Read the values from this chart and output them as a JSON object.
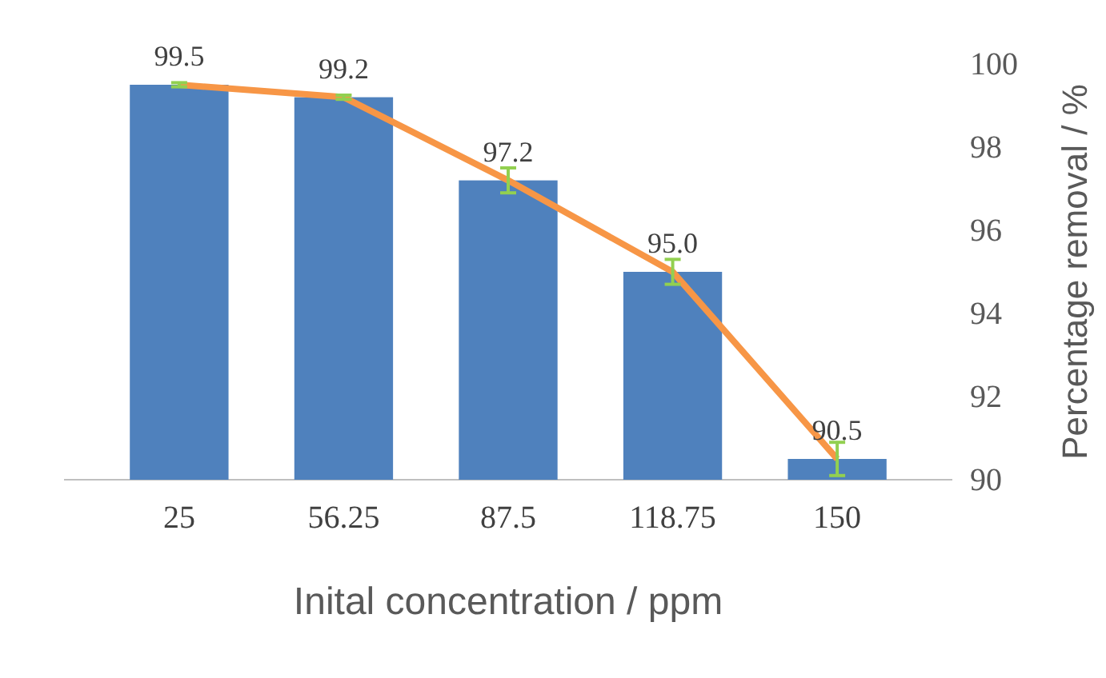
{
  "chart_data": {
    "type": "bar",
    "xlabel": "Inital concentration / ppm",
    "y2label": "Percentage removal / %",
    "categories": [
      "25",
      "56.25",
      "87.5",
      "118.75",
      "150"
    ],
    "series": [
      {
        "axis": "y2",
        "color": "#4f81bd",
        "values": [
          99.5,
          99.2,
          97.2,
          95.0,
          90.5
        ],
        "value_labels": [
          "99.5",
          "99.2",
          "97.2",
          "95.0",
          "90.5"
        ]
      },
      {
        "type": "line",
        "axis": "y2",
        "color": "#f79646",
        "values": [
          99.5,
          99.2,
          97.2,
          95.0,
          90.5
        ],
        "errors": [
          0.05,
          0.05,
          0.3,
          0.3,
          0.4
        ]
      }
    ],
    "y2lim": [
      90,
      100
    ],
    "y2ticks": [
      90,
      92,
      94,
      96,
      98,
      100
    ],
    "grid": false,
    "marker": "none"
  }
}
